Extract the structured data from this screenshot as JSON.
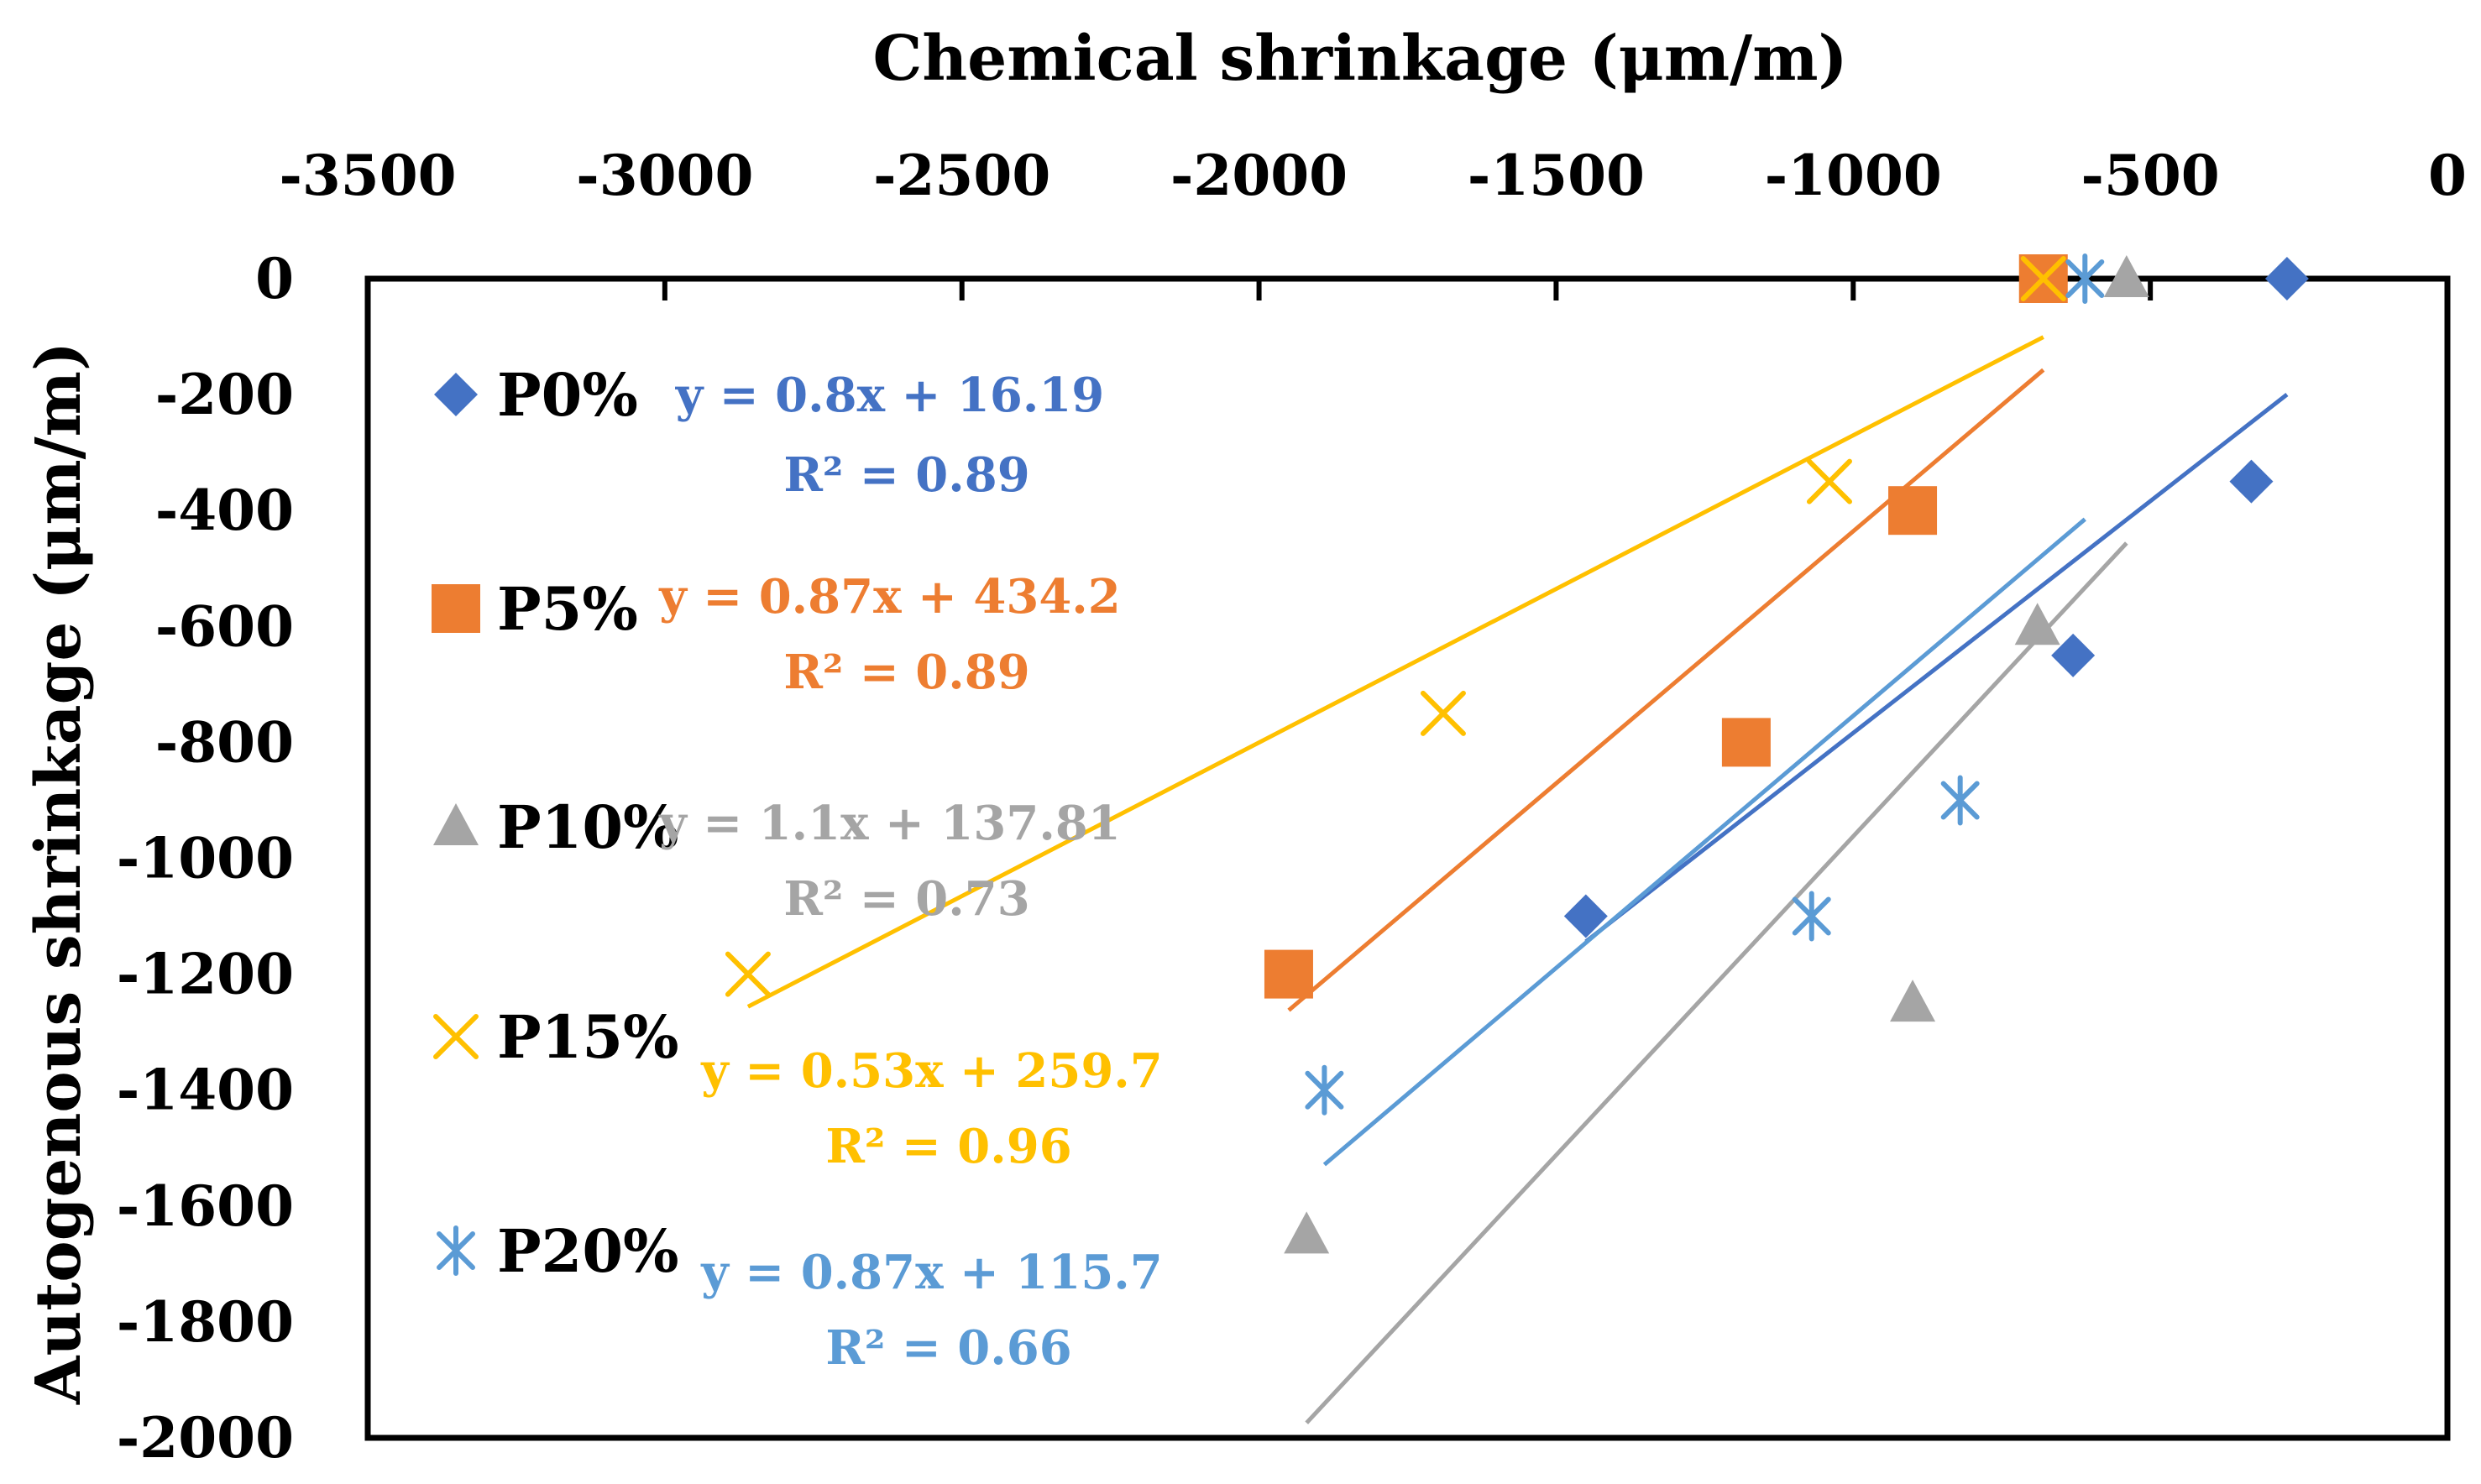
{
  "chart_data": {
    "type": "scatter",
    "xlabel": "Chemical shrinkage (μm/m)",
    "ylabel": "Autogenous shrinkage (μm/m)",
    "xlim": [
      -3500,
      0
    ],
    "ylim": [
      -2000,
      0
    ],
    "x_ticks": [
      "-3500",
      "-3000",
      "-2500",
      "-2000",
      "-1500",
      "-1000",
      "-500",
      "0"
    ],
    "y_ticks": [
      "0",
      "-200",
      "-400",
      "-600",
      "-800",
      "-1000",
      "-1200",
      "-1400",
      "-1600",
      "-1800",
      "-2000"
    ],
    "x_axis_position": "top",
    "grid": false,
    "legend_position": "left-inside",
    "series": [
      {
        "name": "P0%",
        "marker": "diamond",
        "color": "#4472C4",
        "points": [
          [
            -270,
            0
          ],
          [
            -330,
            -350
          ],
          [
            -630,
            -650
          ],
          [
            -1450,
            -1100
          ]
        ],
        "trendline": {
          "x_range": [
            -1450,
            -270
          ]
        },
        "equation": "y = 0.8x + 16.19",
        "r2": "R² = 0.89"
      },
      {
        "name": "P5%",
        "marker": "square",
        "color": "#ED7D31",
        "points": [
          [
            -680,
            0
          ],
          [
            -900,
            -400
          ],
          [
            -1180,
            -800
          ],
          [
            -1950,
            -1200
          ]
        ],
        "trendline": {
          "x_range": [
            -1950,
            -680
          ]
        },
        "equation": "y = 0.87x + 434.2",
        "r2": "R² = 0.89"
      },
      {
        "name": "P10%",
        "marker": "triangle",
        "color": "#A5A5A5",
        "points": [
          [
            -540,
            0
          ],
          [
            -690,
            -600
          ],
          [
            -900,
            -1250
          ],
          [
            -1920,
            -1650
          ]
        ],
        "trendline": {
          "x_range": [
            -1920,
            -540
          ]
        },
        "equation": "y = 1.1x + 137.81",
        "r2": "R² = 0.73"
      },
      {
        "name": "P15%",
        "marker": "x",
        "color": "#FFC000",
        "points": [
          [
            -680,
            0
          ],
          [
            -1040,
            -350
          ],
          [
            -1690,
            -750
          ],
          [
            -2860,
            -1200
          ]
        ],
        "trendline": {
          "x_range": [
            -2860,
            -680
          ]
        },
        "equation": "y = 0.53x + 259.7",
        "r2": "R² = 0.96"
      },
      {
        "name": "P20%",
        "marker": "asterisk",
        "color": "#5B9BD5",
        "points": [
          [
            -610,
            0
          ],
          [
            -820,
            -900
          ],
          [
            -1070,
            -1100
          ],
          [
            -1890,
            -1400
          ]
        ],
        "trendline": {
          "x_range": [
            -1890,
            -610
          ]
        },
        "equation": "y = 0.87x + 115.7",
        "r2": "R² = 0.66"
      }
    ]
  }
}
